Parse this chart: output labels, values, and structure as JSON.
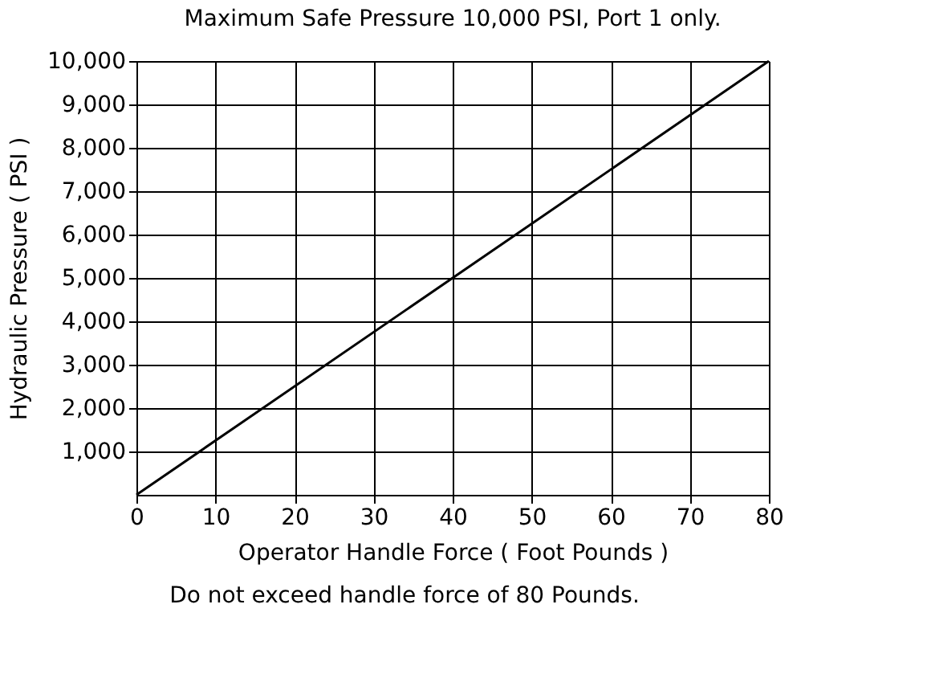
{
  "chart_data": {
    "type": "line",
    "title": "Maximum Safe Pressure 10,000 PSI, Port 1 only.",
    "xlabel": "Operator Handle Force ( Foot Pounds )",
    "ylabel": "Hydraulic Pressure ( PSI )",
    "annotations": [
      "Do not exceed handle force of 80 Pounds."
    ],
    "series": [
      {
        "x": [
          0,
          80
        ],
        "values": [
          0,
          10000
        ],
        "color": "#000000"
      }
    ],
    "xlim": [
      0,
      80
    ],
    "xticks": [
      0,
      10,
      20,
      30,
      40,
      50,
      60,
      70,
      80
    ],
    "ylim": [
      0,
      10000
    ],
    "yticks": [
      {
        "value": 1000,
        "label": "1,000"
      },
      {
        "value": 2000,
        "label": "2,000"
      },
      {
        "value": 3000,
        "label": "3,000"
      },
      {
        "value": 4000,
        "label": "4,000"
      },
      {
        "value": 5000,
        "label": "5,000"
      },
      {
        "value": 6000,
        "label": "6,000"
      },
      {
        "value": 7000,
        "label": "7,000"
      },
      {
        "value": 8000,
        "label": "8,000"
      },
      {
        "value": 9000,
        "label": "9,000"
      },
      {
        "value": 10000,
        "label": "10,000"
      }
    ],
    "grid": true,
    "legend": false,
    "marker": "none",
    "line_style": "solid"
  }
}
